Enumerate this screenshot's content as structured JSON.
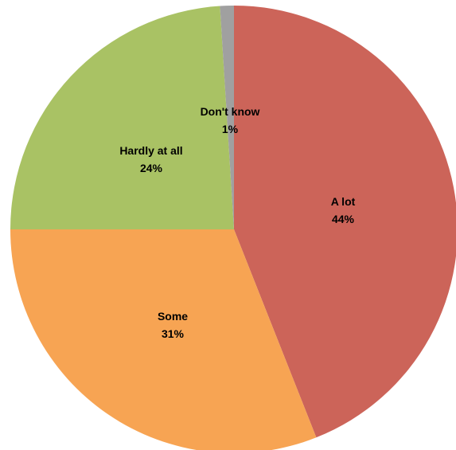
{
  "chart_data": {
    "type": "pie",
    "title": "",
    "slices": [
      {
        "label": "A lot",
        "value": 44,
        "display": "44%",
        "color": "#CC6459"
      },
      {
        "label": "Some",
        "value": 31,
        "display": "31%",
        "color": "#F7A453"
      },
      {
        "label": "Hardly at all",
        "value": 24,
        "display": "24%",
        "color": "#A9C264"
      },
      {
        "label": "Don't know",
        "value": 1,
        "display": "1%",
        "color": "#A0A0A0"
      }
    ],
    "start": "top",
    "direction": "clockwise",
    "legend": "none",
    "data_labels": "on slices"
  }
}
